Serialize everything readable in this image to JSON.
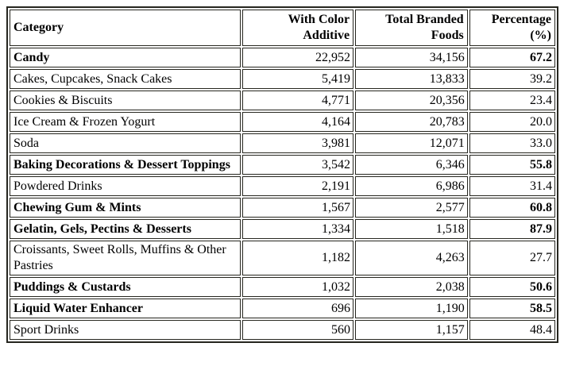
{
  "colors": {
    "border": "#26261f",
    "text": "#000000",
    "background": "#ffffff"
  },
  "table": {
    "columns": [
      "Category",
      "With Color Additive",
      "Total Branded Foods",
      "Percentage (%)"
    ],
    "rows": [
      {
        "category": "Candy",
        "with_color_additive": "22,952",
        "total_branded_foods": "34,156",
        "percentage": "67.2",
        "bold": true
      },
      {
        "category": "Cakes, Cupcakes, Snack Cakes",
        "with_color_additive": "5,419",
        "total_branded_foods": "13,833",
        "percentage": "39.2",
        "bold": false
      },
      {
        "category": "Cookies & Biscuits",
        "with_color_additive": "4,771",
        "total_branded_foods": "20,356",
        "percentage": "23.4",
        "bold": false
      },
      {
        "category": "Ice Cream & Frozen Yogurt",
        "with_color_additive": "4,164",
        "total_branded_foods": "20,783",
        "percentage": "20.0",
        "bold": false
      },
      {
        "category": "Soda",
        "with_color_additive": "3,981",
        "total_branded_foods": "12,071",
        "percentage": "33.0",
        "bold": false
      },
      {
        "category": "Baking Decorations & Dessert Toppings",
        "with_color_additive": "3,542",
        "total_branded_foods": "6,346",
        "percentage": "55.8",
        "bold": true
      },
      {
        "category": "Powdered Drinks",
        "with_color_additive": "2,191",
        "total_branded_foods": "6,986",
        "percentage": "31.4",
        "bold": false
      },
      {
        "category": "Chewing Gum & Mints",
        "with_color_additive": "1,567",
        "total_branded_foods": "2,577",
        "percentage": "60.8",
        "bold": true
      },
      {
        "category": "Gelatin, Gels, Pectins & Desserts",
        "with_color_additive": "1,334",
        "total_branded_foods": "1,518",
        "percentage": "87.9",
        "bold": true
      },
      {
        "category": "Croissants, Sweet Rolls, Muffins & Other Pastries",
        "with_color_additive": "1,182",
        "total_branded_foods": "4,263",
        "percentage": "27.7",
        "bold": false
      },
      {
        "category": "Puddings & Custards",
        "with_color_additive": "1,032",
        "total_branded_foods": "2,038",
        "percentage": "50.6",
        "bold": true
      },
      {
        "category": "Liquid Water Enhancer",
        "with_color_additive": "696",
        "total_branded_foods": "1,190",
        "percentage": "58.5",
        "bold": true
      },
      {
        "category": "Sport Drinks",
        "with_color_additive": "560",
        "total_branded_foods": "1,157",
        "percentage": "48.4",
        "bold": false
      }
    ]
  }
}
